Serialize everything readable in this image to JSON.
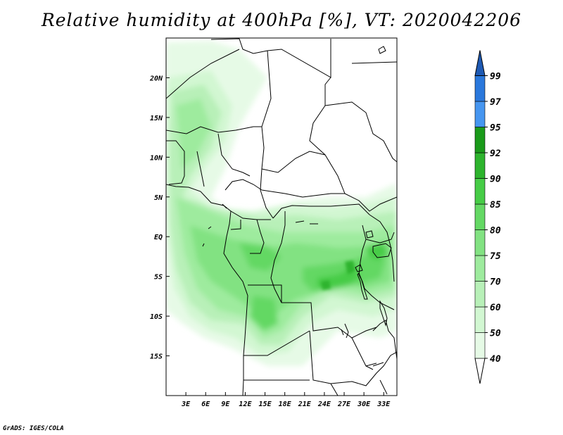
{
  "title": "Relative humidity at 400hPa [%], VT: 2020042206",
  "credit": "GrADS: IGES/COLA",
  "map": {
    "variable": "Relative humidity",
    "level": "400hPa",
    "units": "%",
    "valid_time": "2020042206",
    "lon_range": [
      0,
      35
    ],
    "lat_range": [
      -20,
      25
    ],
    "lat_ticks": [
      {
        "value": 20,
        "label": "20N"
      },
      {
        "value": 15,
        "label": "15N"
      },
      {
        "value": 10,
        "label": "10N"
      },
      {
        "value": 5,
        "label": "5N"
      },
      {
        "value": 0,
        "label": "EQ"
      },
      {
        "value": -5,
        "label": "5S"
      },
      {
        "value": -10,
        "label": "10S"
      },
      {
        "value": -15,
        "label": "15S"
      }
    ],
    "lon_ticks": [
      {
        "value": 3,
        "label": "3E"
      },
      {
        "value": 6,
        "label": "6E"
      },
      {
        "value": 9,
        "label": "9E"
      },
      {
        "value": 12,
        "label": "12E"
      },
      {
        "value": 15,
        "label": "15E"
      },
      {
        "value": 18,
        "label": "18E"
      },
      {
        "value": 21,
        "label": "21E"
      },
      {
        "value": 24,
        "label": "24E"
      },
      {
        "value": 27,
        "label": "27E"
      },
      {
        "value": 30,
        "label": "30E"
      },
      {
        "value": 33,
        "label": "33E"
      }
    ]
  },
  "colorbar": {
    "levels": [
      {
        "label": "40",
        "color": "#e6fae6"
      },
      {
        "label": "50",
        "color": "#d2f7d2"
      },
      {
        "label": "60",
        "color": "#b8f0b8"
      },
      {
        "label": "70",
        "color": "#9eeb9e"
      },
      {
        "label": "75",
        "color": "#82e282"
      },
      {
        "label": "80",
        "color": "#64d864"
      },
      {
        "label": "85",
        "color": "#46cc46"
      },
      {
        "label": "90",
        "color": "#2db42d"
      },
      {
        "label": "92",
        "color": "#1a9a1a"
      },
      {
        "label": "95",
        "color": "#4696f0"
      },
      {
        "label": "97",
        "color": "#2a78dc"
      },
      {
        "label": "99",
        "color": "#1e5ab4"
      }
    ],
    "under_color": "#ffffff",
    "over_color": "#1e5ab4"
  }
}
